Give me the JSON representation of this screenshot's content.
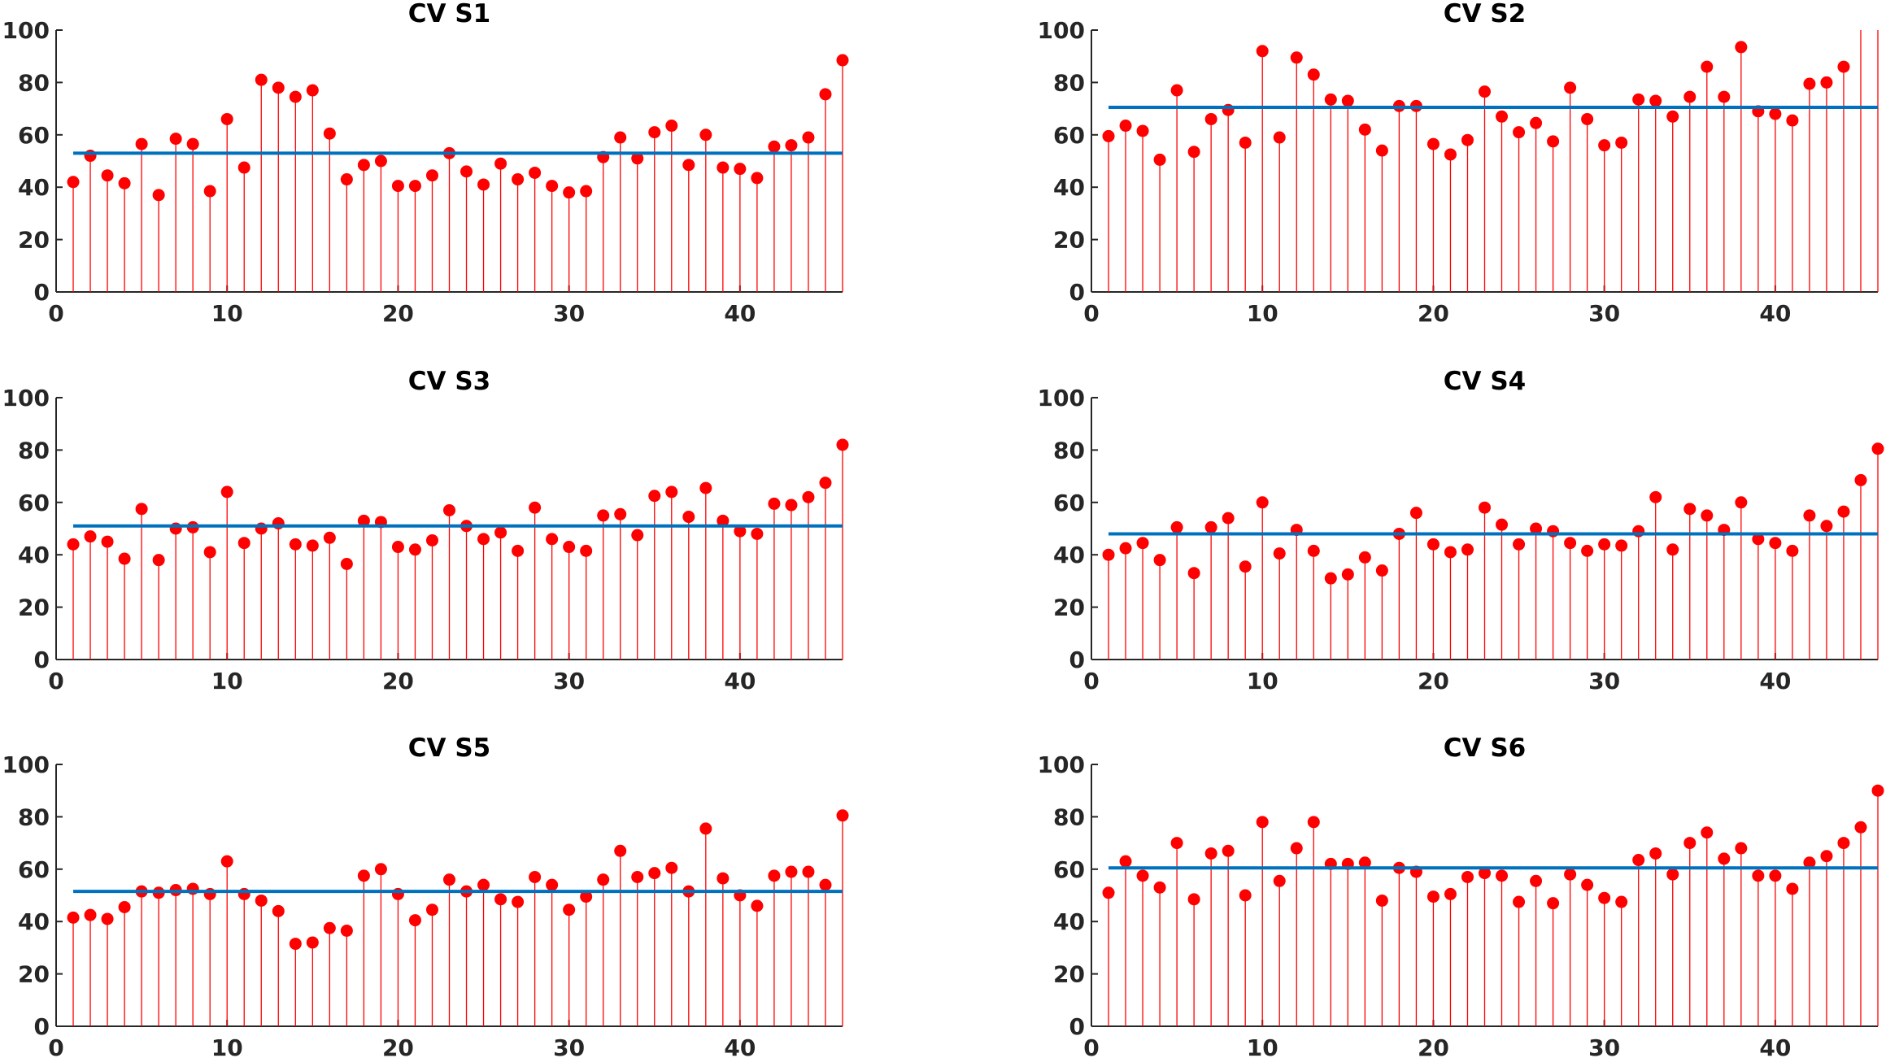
{
  "chart_data": [
    {
      "type": "stem",
      "title": "CV S1",
      "xlim": [
        0,
        46
      ],
      "ylim": [
        0,
        100
      ],
      "xticks": [
        0,
        10,
        20,
        30,
        40
      ],
      "yticks": [
        0,
        20,
        40,
        60,
        80,
        100
      ],
      "mean": 53,
      "colors": {
        "stem": "#ff0000",
        "mean": "#0072bd"
      },
      "x": [
        1,
        2,
        3,
        4,
        5,
        6,
        7,
        8,
        9,
        10,
        11,
        12,
        13,
        14,
        15,
        16,
        17,
        18,
        19,
        20,
        21,
        22,
        23,
        24,
        25,
        26,
        27,
        28,
        29,
        30,
        31,
        32,
        33,
        34,
        35,
        36,
        37,
        38,
        39,
        40,
        41,
        42,
        43,
        44,
        45,
        46
      ],
      "values": [
        42,
        52,
        44.5,
        41.5,
        56.5,
        37,
        58.5,
        56.5,
        38.5,
        66,
        47.5,
        81,
        78,
        74.5,
        77,
        60.5,
        43,
        48.5,
        50,
        40.5,
        40.5,
        44.5,
        53,
        46,
        41,
        49,
        43,
        45.5,
        40.5,
        38,
        38.5,
        51.5,
        59,
        51,
        61,
        63.5,
        48.5,
        60,
        47.5,
        47,
        43.5,
        55.5,
        56,
        59,
        75.5,
        88.5
      ]
    },
    {
      "type": "stem",
      "title": "CV S2",
      "xlim": [
        0,
        46
      ],
      "ylim": [
        0,
        100
      ],
      "xticks": [
        0,
        10,
        20,
        30,
        40
      ],
      "yticks": [
        0,
        20,
        40,
        60,
        80,
        100
      ],
      "mean": 70.5,
      "colors": {
        "stem": "#ff0000",
        "mean": "#0072bd"
      },
      "x": [
        1,
        2,
        3,
        4,
        5,
        6,
        7,
        8,
        9,
        10,
        11,
        12,
        13,
        14,
        15,
        16,
        17,
        18,
        19,
        20,
        21,
        22,
        23,
        24,
        25,
        26,
        27,
        28,
        29,
        30,
        31,
        32,
        33,
        34,
        35,
        36,
        37,
        38,
        39,
        40,
        41,
        42,
        43,
        44,
        45,
        46
      ],
      "values": [
        59.5,
        63.5,
        61.5,
        50.5,
        77,
        53.5,
        66,
        69.5,
        57,
        92,
        59,
        89.5,
        83,
        73.5,
        73,
        62,
        54,
        71,
        71,
        56.5,
        52.5,
        58,
        76.5,
        67,
        61,
        64.5,
        57.5,
        78,
        66,
        56,
        57,
        73.5,
        73,
        67,
        74.5,
        86,
        74.5,
        93.5,
        69,
        68,
        65.5,
        79.5,
        80,
        86,
        100,
        100
      ]
    },
    {
      "type": "stem",
      "title": "CV S3",
      "xlim": [
        0,
        46
      ],
      "ylim": [
        0,
        100
      ],
      "xticks": [
        0,
        10,
        20,
        30,
        40
      ],
      "yticks": [
        0,
        20,
        40,
        60,
        80,
        100
      ],
      "mean": 51,
      "colors": {
        "stem": "#ff0000",
        "mean": "#0072bd"
      },
      "x": [
        1,
        2,
        3,
        4,
        5,
        6,
        7,
        8,
        9,
        10,
        11,
        12,
        13,
        14,
        15,
        16,
        17,
        18,
        19,
        20,
        21,
        22,
        23,
        24,
        25,
        26,
        27,
        28,
        29,
        30,
        31,
        32,
        33,
        34,
        35,
        36,
        37,
        38,
        39,
        40,
        41,
        42,
        43,
        44,
        45,
        46
      ],
      "values": [
        44,
        47,
        45,
        38.5,
        57.5,
        38,
        50,
        50.5,
        41,
        64,
        44.5,
        50,
        52,
        44,
        43.5,
        46.5,
        36.5,
        53,
        52.5,
        43,
        42,
        45.5,
        57,
        51,
        46,
        48.5,
        41.5,
        58,
        46,
        43,
        41.5,
        55,
        55.5,
        47.5,
        62.5,
        64,
        54.5,
        65.5,
        53,
        49,
        48,
        59.5,
        59,
        62,
        67.5,
        82
      ]
    },
    {
      "type": "stem",
      "title": "CV S4",
      "xlim": [
        0,
        46
      ],
      "ylim": [
        0,
        100
      ],
      "xticks": [
        0,
        10,
        20,
        30,
        40
      ],
      "yticks": [
        0,
        20,
        40,
        60,
        80,
        100
      ],
      "mean": 48,
      "colors": {
        "stem": "#ff0000",
        "mean": "#0072bd"
      },
      "x": [
        1,
        2,
        3,
        4,
        5,
        6,
        7,
        8,
        9,
        10,
        11,
        12,
        13,
        14,
        15,
        16,
        17,
        18,
        19,
        20,
        21,
        22,
        23,
        24,
        25,
        26,
        27,
        28,
        29,
        30,
        31,
        32,
        33,
        34,
        35,
        36,
        37,
        38,
        39,
        40,
        41,
        42,
        43,
        44,
        45,
        46
      ],
      "values": [
        40,
        42.5,
        44.5,
        38,
        50.5,
        33,
        50.5,
        54,
        35.5,
        60,
        40.5,
        49.5,
        41.5,
        31,
        32.5,
        39,
        34,
        48,
        56,
        44,
        41,
        42,
        58,
        51.5,
        44,
        50,
        49,
        44.5,
        41.5,
        44,
        43.5,
        49,
        62,
        42,
        57.5,
        55,
        49.5,
        60,
        46,
        44.5,
        41.5,
        55,
        51,
        56.5,
        68.5,
        80.5
      ]
    },
    {
      "type": "stem",
      "title": "CV S5",
      "xlim": [
        0,
        46
      ],
      "ylim": [
        0,
        100
      ],
      "xticks": [
        0,
        10,
        20,
        30,
        40
      ],
      "yticks": [
        0,
        20,
        40,
        60,
        80,
        100
      ],
      "mean": 51.5,
      "colors": {
        "stem": "#ff0000",
        "mean": "#0072bd"
      },
      "x": [
        1,
        2,
        3,
        4,
        5,
        6,
        7,
        8,
        9,
        10,
        11,
        12,
        13,
        14,
        15,
        16,
        17,
        18,
        19,
        20,
        21,
        22,
        23,
        24,
        25,
        26,
        27,
        28,
        29,
        30,
        31,
        32,
        33,
        34,
        35,
        36,
        37,
        38,
        39,
        40,
        41,
        42,
        43,
        44,
        45,
        46
      ],
      "values": [
        41.5,
        42.5,
        41,
        45.5,
        51.5,
        51,
        52,
        52.5,
        50.5,
        63,
        50.5,
        48,
        44,
        31.5,
        32,
        37.5,
        36.5,
        57.5,
        60,
        50.5,
        40.5,
        44.5,
        56,
        51.5,
        54,
        48.5,
        47.5,
        57,
        54,
        44.5,
        49.5,
        56,
        67,
        57,
        58.5,
        60.5,
        51.5,
        75.5,
        56.5,
        50,
        46,
        57.5,
        59,
        59,
        54,
        80.5
      ]
    },
    {
      "type": "stem",
      "title": "CV S6",
      "xlim": [
        0,
        46
      ],
      "ylim": [
        0,
        100
      ],
      "xticks": [
        0,
        10,
        20,
        30,
        40
      ],
      "yticks": [
        0,
        20,
        40,
        60,
        80,
        100
      ],
      "mean": 60.5,
      "colors": {
        "stem": "#ff0000",
        "mean": "#0072bd"
      },
      "x": [
        1,
        2,
        3,
        4,
        5,
        6,
        7,
        8,
        9,
        10,
        11,
        12,
        13,
        14,
        15,
        16,
        17,
        18,
        19,
        20,
        21,
        22,
        23,
        24,
        25,
        26,
        27,
        28,
        29,
        30,
        31,
        32,
        33,
        34,
        35,
        36,
        37,
        38,
        39,
        40,
        41,
        42,
        43,
        44,
        45,
        46
      ],
      "values": [
        51,
        63,
        57.5,
        53,
        70,
        48.5,
        66,
        67,
        50,
        78,
        55.5,
        68,
        78,
        62,
        62,
        62.5,
        48,
        60.5,
        59,
        49.5,
        50.5,
        57,
        58.5,
        57.5,
        47.5,
        55.5,
        47,
        58,
        54,
        49,
        47.5,
        63.5,
        66,
        58,
        70,
        74,
        64,
        68,
        57.5,
        57.5,
        52.5,
        62.5,
        65,
        70,
        76,
        90
      ]
    }
  ]
}
